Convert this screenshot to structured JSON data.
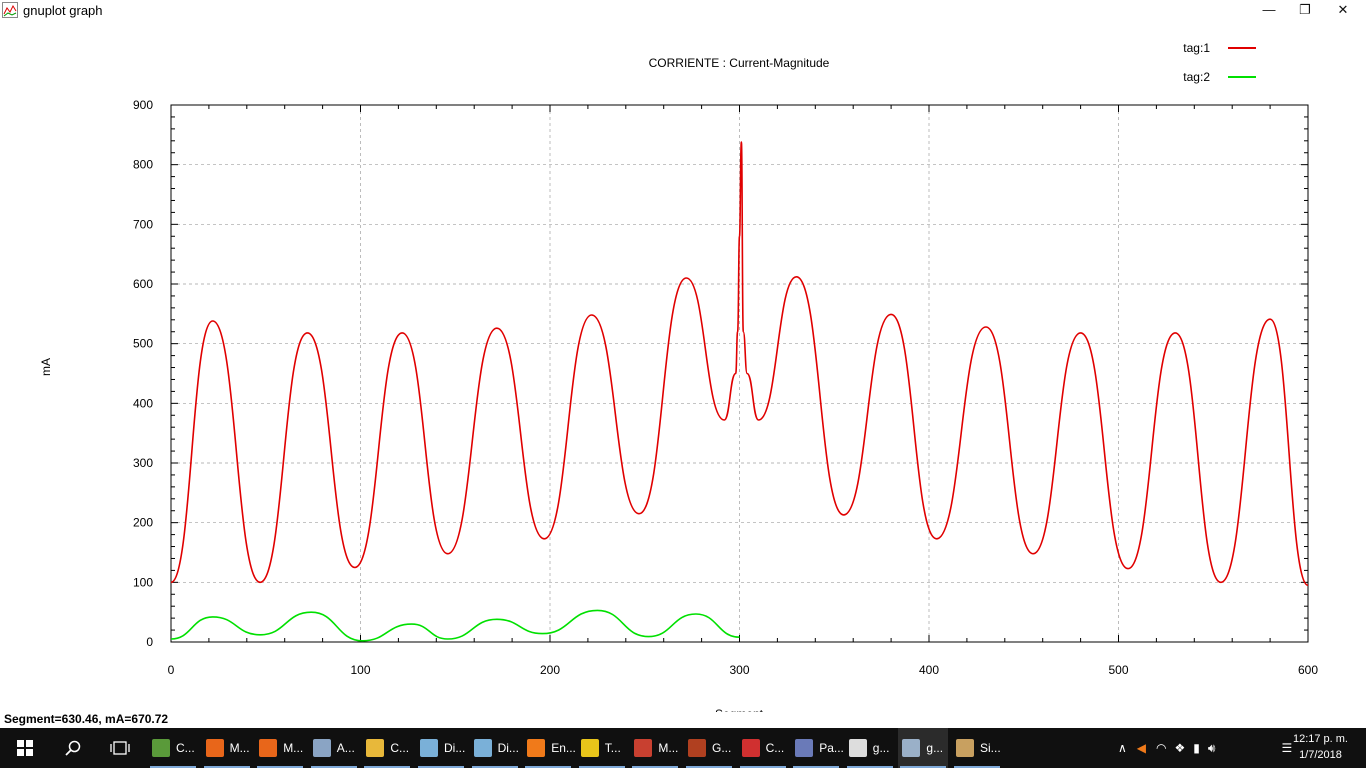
{
  "window": {
    "title": "gnuplot graph",
    "minimize_icon": "minimize-icon",
    "restore_icon": "restore-icon",
    "close_icon": "close-icon"
  },
  "status_text": "Segment=630.46, mA=670.72",
  "chart_data": {
    "type": "line",
    "title": "CORRIENTE : Current-Magnitude",
    "xlabel": "Segment",
    "ylabel": "mA",
    "xlim": [
      0,
      600
    ],
    "ylim": [
      0,
      900
    ],
    "xticks": [
      "0",
      "100",
      "200",
      "300",
      "400",
      "500",
      "600"
    ],
    "yticks": [
      "0",
      "100",
      "200",
      "300",
      "400",
      "500",
      "600",
      "700",
      "800",
      "900"
    ],
    "grid": true,
    "legend_position": "top-right",
    "series": [
      {
        "name": "tag:1",
        "color": "#e00000",
        "x": [
          0,
          22,
          47,
          72,
          97,
          122,
          146,
          172,
          197,
          222,
          247,
          272,
          292,
          298,
          299,
          300,
          301,
          302,
          304,
          310,
          330,
          355,
          380,
          404,
          430,
          455,
          480,
          505,
          530,
          554,
          580,
          600
        ],
        "y": [
          100,
          538,
          100,
          518,
          125,
          518,
          148,
          526,
          173,
          548,
          215,
          610,
          372,
          450,
          520,
          680,
          838,
          520,
          450,
          372,
          612,
          213,
          549,
          173,
          528,
          148,
          518,
          123,
          518,
          100,
          541,
          95
        ]
      },
      {
        "name": "tag:2",
        "color": "#00e000",
        "x": [
          0,
          22,
          47,
          74,
          101,
          127,
          146,
          172,
          196,
          225,
          252,
          277,
          300
        ],
        "y": [
          5,
          42,
          12,
          50,
          2,
          30,
          5,
          38,
          14,
          53,
          9,
          47,
          8
        ]
      }
    ]
  },
  "taskbar": {
    "items": [
      {
        "label": "C...",
        "color": "#5a9a3a"
      },
      {
        "label": "M...",
        "color": "#e8661a"
      },
      {
        "label": "M...",
        "color": "#e8661a"
      },
      {
        "label": "A...",
        "color": "#8aa4c4"
      },
      {
        "label": "C...",
        "color": "#e8b83a"
      },
      {
        "label": "Di...",
        "color": "#7ab0d8"
      },
      {
        "label": "Di...",
        "color": "#7ab0d8"
      },
      {
        "label": "En...",
        "color": "#f07a1a"
      },
      {
        "label": "T...",
        "color": "#e8c41a"
      },
      {
        "label": "M...",
        "color": "#c84030"
      },
      {
        "label": "G...",
        "color": "#b04020"
      },
      {
        "label": "C...",
        "color": "#d03030"
      },
      {
        "label": "Pa...",
        "color": "#6a7ab8"
      },
      {
        "label": "g...",
        "color": "#dddddd"
      },
      {
        "label": "g...",
        "color": "#9ab0c8"
      },
      {
        "label": "Si...",
        "color": "#c8a060"
      }
    ],
    "clock_time": "12:17 p. m.",
    "clock_date": "1/7/2018"
  }
}
